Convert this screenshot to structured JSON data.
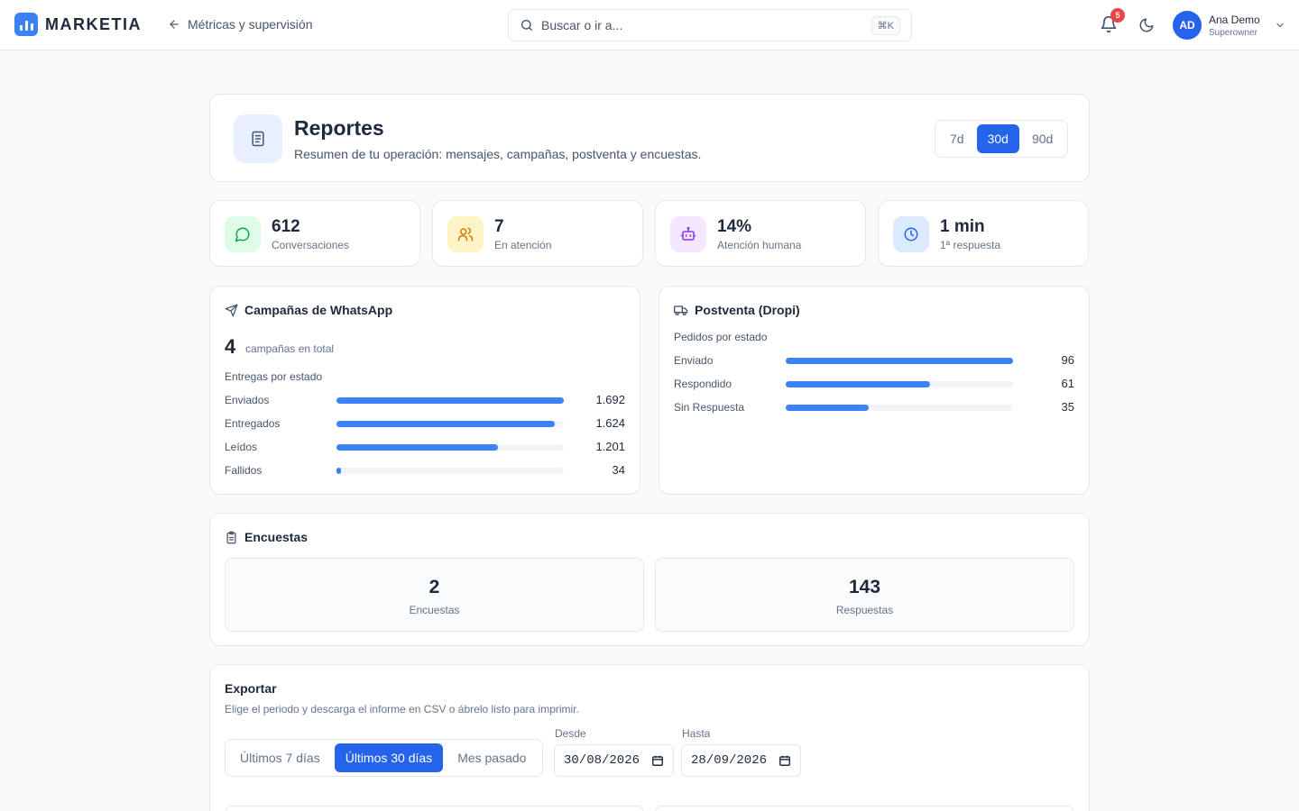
{
  "app": {
    "brand": "MARKETIA",
    "back_label": "Métricas y supervisión",
    "search_placeholder": "Buscar o ir a...",
    "search_shortcut": "⌘K",
    "notifications_count": "5",
    "user": {
      "initials": "AD",
      "name": "Ana Demo",
      "role": "Superowner"
    }
  },
  "header": {
    "title": "Reportes",
    "subtitle": "Resumen de tu operación: mensajes, campañas, postventa y encuestas.",
    "ranges": [
      "7d",
      "30d",
      "90d"
    ],
    "active_range": "30d"
  },
  "stats": [
    {
      "value": "612",
      "label": "Conversaciones",
      "icon": "chat-icon",
      "color": "#16a34a",
      "bg": "#dcfce7"
    },
    {
      "value": "7",
      "label": "En atención",
      "icon": "users-icon",
      "color": "#d97706",
      "bg": "#fef3c7"
    },
    {
      "value": "14%",
      "label": "Atención humana",
      "icon": "bot-icon",
      "color": "#9333ea",
      "bg": "#f3e8ff"
    },
    {
      "value": "1 min",
      "label": "1ª respuesta",
      "icon": "clock-icon",
      "color": "#2563eb",
      "bg": "#dbeafe"
    }
  ],
  "campaigns": {
    "title": "Campañas de WhatsApp",
    "count": "4",
    "count_label": "campañas en total",
    "section_label": "Entregas por estado",
    "rows": [
      {
        "label": "Enviados",
        "value": "1.692",
        "ratio": 1.0
      },
      {
        "label": "Entregados",
        "value": "1.624",
        "ratio": 0.96
      },
      {
        "label": "Leídos",
        "value": "1.201",
        "ratio": 0.71
      },
      {
        "label": "Fallidos",
        "value": "34",
        "ratio": 0.02
      }
    ]
  },
  "postsale": {
    "title": "Postventa (Dropi)",
    "section_label": "Pedidos por estado",
    "rows": [
      {
        "label": "Enviado",
        "value": "96",
        "ratio": 1.0
      },
      {
        "label": "Respondido",
        "value": "61",
        "ratio": 0.635
      },
      {
        "label": "Sin Respuesta",
        "value": "35",
        "ratio": 0.365
      }
    ]
  },
  "surveys": {
    "title": "Encuestas",
    "boxes": [
      {
        "value": "2",
        "label": "Encuestas"
      },
      {
        "value": "143",
        "label": "Respuestas"
      }
    ]
  },
  "export": {
    "title": "Exportar",
    "subtitle": "Elige el periodo y descarga el informe en CSV o ábrelo listo para imprimir.",
    "presets": [
      "Últimos 7 días",
      "Últimos 30 días",
      "Mes pasado"
    ],
    "active_preset": "Últimos 30 días",
    "from_label": "Desde",
    "from_value": "30/08/2026",
    "to_label": "Hasta",
    "to_value": "28/09/2026"
  },
  "colors": {
    "accent": "#2563eb",
    "bar": "#3b82f6"
  }
}
